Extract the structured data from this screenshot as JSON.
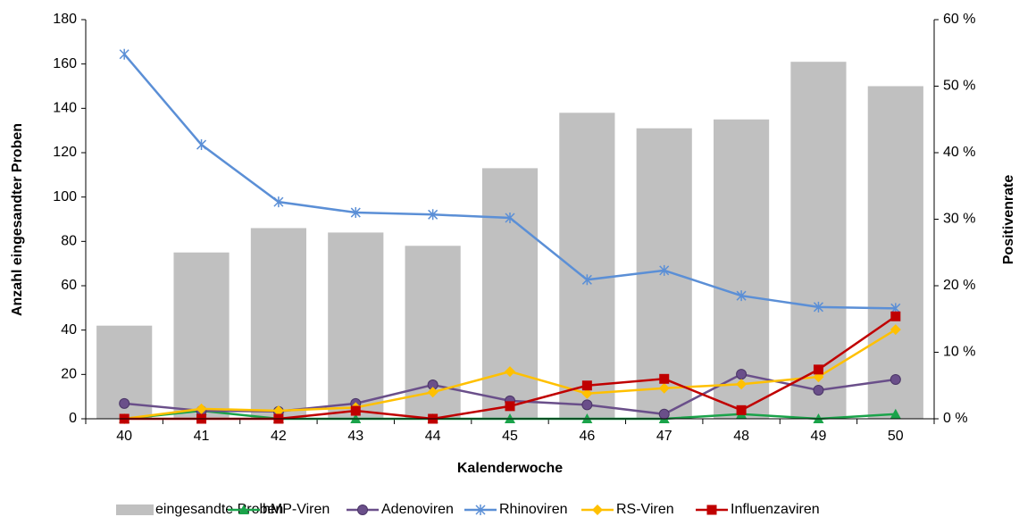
{
  "chart_data": {
    "type": "bar-line",
    "categories": [
      "40",
      "41",
      "42",
      "43",
      "44",
      "45",
      "46",
      "47",
      "48",
      "49",
      "50"
    ],
    "x_label": "Kalenderwoche",
    "y_label": "Anzahl eingesandter Proben",
    "y2_label": "Positivenrate",
    "ylim": [
      0,
      180
    ],
    "yticks": [
      0,
      20,
      40,
      60,
      80,
      100,
      120,
      140,
      160,
      180
    ],
    "y2lim": [
      0,
      60
    ],
    "y2ticks": [
      {
        "value": 0,
        "label": "0 %"
      },
      {
        "value": 10,
        "label": "10 %"
      },
      {
        "value": 20,
        "label": "20 %"
      },
      {
        "value": 30,
        "label": "30 %"
      },
      {
        "value": 40,
        "label": "40 %"
      },
      {
        "value": 50,
        "label": "50 %"
      },
      {
        "value": 60,
        "label": "60 %"
      }
    ],
    "series": [
      {
        "name": "eingesandte Proben",
        "kind": "bar",
        "color": "#c0c0c0",
        "values": [
          42,
          75,
          86,
          84,
          78,
          113,
          138,
          131,
          135,
          161,
          150
        ]
      },
      {
        "name": "hMP-Viren",
        "kind": "line",
        "axis": "y2",
        "marker": "triangle",
        "color": "#1aa34a",
        "values": [
          0,
          1.2,
          0,
          0,
          0,
          0,
          0,
          0,
          0.7,
          0,
          0.7
        ]
      },
      {
        "name": "Adenoviren",
        "kind": "line",
        "axis": "y2",
        "marker": "circle",
        "color": "#6a4f8a",
        "values": [
          2.3,
          1.2,
          1.1,
          2.3,
          5.1,
          2.7,
          2.1,
          0.7,
          6.7,
          4.3,
          5.9
        ]
      },
      {
        "name": "Rhinoviren",
        "kind": "line",
        "axis": "y2",
        "marker": "star",
        "color": "#5b8fd6",
        "values": [
          54.8,
          41.2,
          32.6,
          31.0,
          30.7,
          30.2,
          20.9,
          22.3,
          18.5,
          16.8,
          16.6
        ]
      },
      {
        "name": "RS-Viren",
        "kind": "line",
        "axis": "y2",
        "marker": "diamond",
        "color": "#ffc000",
        "values": [
          0,
          1.5,
          1.2,
          1.7,
          4.0,
          7.1,
          3.8,
          4.6,
          5.2,
          6.3,
          13.4
        ]
      },
      {
        "name": "Influenzaviren",
        "kind": "line",
        "axis": "y2",
        "marker": "square",
        "color": "#c00000",
        "values": [
          0,
          0,
          0,
          1.2,
          0,
          1.9,
          5.0,
          6.0,
          1.3,
          7.4,
          15.4
        ]
      }
    ]
  }
}
